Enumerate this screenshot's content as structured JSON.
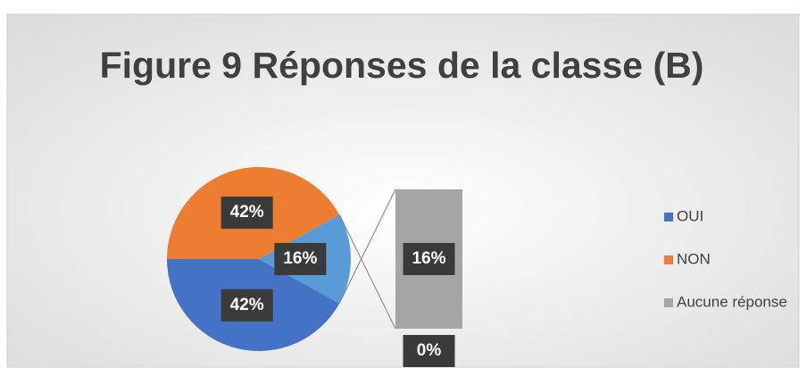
{
  "chart_data": {
    "type": "bar_of_pie",
    "title": "Figure 9 Réponses de la classe (B)",
    "categories": [
      "OUI",
      "NON",
      "Aucune réponse",
      null
    ],
    "values": [
      42,
      42,
      16,
      0
    ],
    "value_labels": [
      "42%",
      "42%",
      "16%",
      "0%"
    ],
    "colors": [
      "#4472c4",
      "#ed7d31",
      "#a5a5a5",
      "#ffc000"
    ],
    "split": 2,
    "other_value": 16,
    "other_label": "16%",
    "other_color": "#5b9bd5",
    "legend": "right"
  }
}
